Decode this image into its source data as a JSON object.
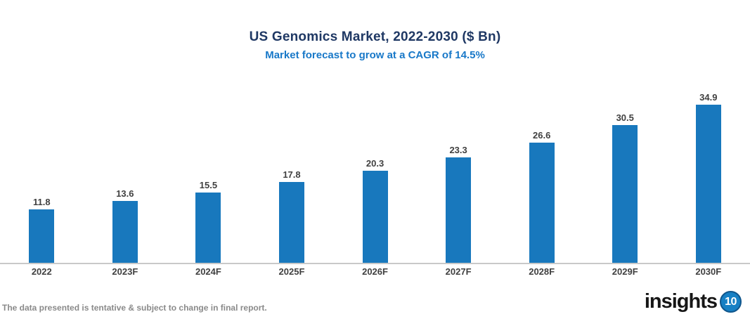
{
  "header": {
    "title": "US Genomics Market, 2022-2030 ($ Bn)",
    "subtitle": "Market forecast to grow at a CAGR of 14.5%"
  },
  "chart_data": {
    "type": "bar",
    "categories": [
      "2022",
      "2023F",
      "2024F",
      "2025F",
      "2026F",
      "2027F",
      "2028F",
      "2029F",
      "2030F"
    ],
    "values": [
      11.8,
      13.6,
      15.5,
      17.8,
      20.3,
      23.3,
      26.6,
      30.5,
      34.9
    ],
    "title": "US Genomics Market, 2022-2030 ($ Bn)",
    "subtitle": "Market forecast to grow at a CAGR of 14.5%",
    "xlabel": "",
    "ylabel": "",
    "ylim": [
      0,
      37
    ],
    "grid": false,
    "legend": "none",
    "value_labels_shown": true
  },
  "colors": {
    "title": "#1f3864",
    "subtitle": "#1878c8",
    "bar": "#1878bd",
    "axis_line": "#c9c9c9",
    "data_label": "#404040",
    "footer_text": "#8a8a8a",
    "logo_badge": "#1780c4"
  },
  "footer": {
    "disclaimer": "The data presented is tentative & subject to change in final report.",
    "logo_text": "insights",
    "logo_badge_text": "10"
  }
}
